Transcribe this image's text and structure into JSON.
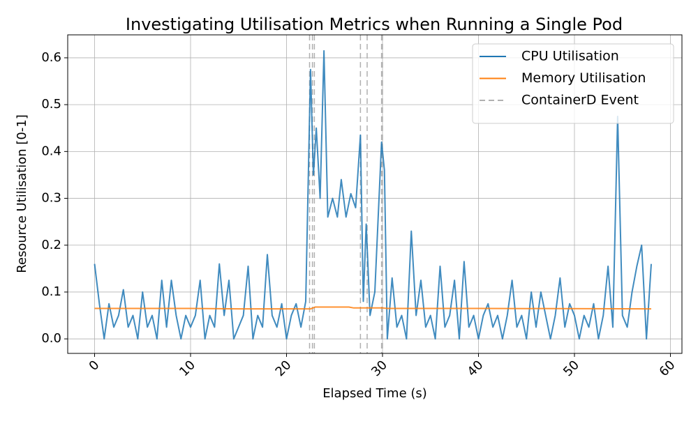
{
  "chart_data": {
    "type": "line",
    "title": "Investigating Utilisation Metrics when Running a Single Pod",
    "x_label": "Elapsed Time (s)",
    "y_label": "Resource Utilisation [0-1]",
    "xlim": [
      -2.8,
      61.2
    ],
    "ylim": [
      -0.031,
      0.649
    ],
    "xticks": [
      0,
      10,
      20,
      30,
      40,
      50,
      60
    ],
    "yticks": [
      {
        "value": 0,
        "label": "0.0"
      },
      0.1,
      0.2,
      0.3,
      0.4,
      0.5,
      0.6
    ],
    "grid": true,
    "legend": "upper right",
    "series": [
      {
        "name": "CPU Utilisation",
        "color": "#1f77b4",
        "x": [
          0,
          0.5,
          1,
          1.5,
          2,
          2.5,
          3,
          3.5,
          4,
          4.5,
          5,
          5.5,
          6,
          6.5,
          7,
          7.5,
          8,
          8.5,
          9,
          9.5,
          10,
          10.5,
          11,
          11.5,
          12,
          12.5,
          13,
          13.5,
          14,
          14.5,
          15,
          15.5,
          16,
          16.5,
          17,
          17.5,
          18,
          18.5,
          19,
          19.5,
          20,
          20.5,
          21,
          21.5,
          22,
          22.5,
          22.8,
          23.1,
          23.5,
          23.9,
          24.3,
          24.8,
          25.3,
          25.7,
          26.2,
          26.7,
          27.2,
          27.7,
          28,
          28.3,
          28.7,
          29.2,
          29.9,
          30.2,
          30.5,
          31,
          31.5,
          32,
          32.5,
          33,
          33.5,
          34,
          34.5,
          35,
          35.5,
          36,
          36.5,
          37,
          37.5,
          38,
          38.5,
          39,
          39.5,
          40,
          40.5,
          41,
          41.5,
          42,
          42.5,
          43,
          43.5,
          44,
          44.5,
          45,
          45.5,
          46,
          46.5,
          47,
          47.5,
          48,
          48.5,
          49,
          49.5,
          50,
          50.5,
          51,
          51.5,
          52,
          52.5,
          53,
          53.5,
          54,
          54.5,
          55,
          55.5,
          56,
          56.5,
          57,
          57.5,
          58
        ],
        "values": [
          0.16,
          0.075,
          0.0,
          0.075,
          0.025,
          0.05,
          0.105,
          0.025,
          0.05,
          0.0,
          0.1,
          0.025,
          0.05,
          0.0,
          0.125,
          0.025,
          0.125,
          0.05,
          0.0,
          0.05,
          0.025,
          0.05,
          0.125,
          0.0,
          0.05,
          0.025,
          0.16,
          0.05,
          0.125,
          0.0,
          0.025,
          0.05,
          0.155,
          0.0,
          0.05,
          0.025,
          0.18,
          0.05,
          0.025,
          0.075,
          0.0,
          0.05,
          0.075,
          0.025,
          0.08,
          0.575,
          0.35,
          0.45,
          0.3,
          0.615,
          0.26,
          0.3,
          0.26,
          0.34,
          0.26,
          0.31,
          0.28,
          0.435,
          0.08,
          0.245,
          0.05,
          0.1,
          0.42,
          0.36,
          0.0,
          0.13,
          0.025,
          0.05,
          0.0,
          0.23,
          0.05,
          0.125,
          0.025,
          0.05,
          0.0,
          0.155,
          0.025,
          0.05,
          0.125,
          0.0,
          0.165,
          0.025,
          0.05,
          0.0,
          0.05,
          0.075,
          0.025,
          0.05,
          0.0,
          0.05,
          0.125,
          0.025,
          0.05,
          0.0,
          0.1,
          0.025,
          0.1,
          0.05,
          0.0,
          0.05,
          0.13,
          0.025,
          0.075,
          0.05,
          0.0,
          0.05,
          0.025,
          0.075,
          0.0,
          0.05,
          0.155,
          0.025,
          0.475,
          0.05,
          0.025,
          0.1,
          0.155,
          0.2,
          0.0,
          0.16
        ]
      },
      {
        "name": "Memory Utilisation",
        "color": "#ff7f0e",
        "x": [
          0,
          10,
          15,
          22.5,
          23,
          26.5,
          27,
          30,
          30.5,
          40,
          58
        ],
        "values": [
          0.065,
          0.065,
          0.064,
          0.064,
          0.068,
          0.068,
          0.066,
          0.066,
          0.065,
          0.065,
          0.064
        ]
      }
    ],
    "events": {
      "name": "ContainerD Event",
      "color": "#b0b0b0",
      "x": [
        22.4,
        22.7,
        22.9,
        27.7,
        28.4,
        29.9,
        30.0
      ]
    }
  }
}
